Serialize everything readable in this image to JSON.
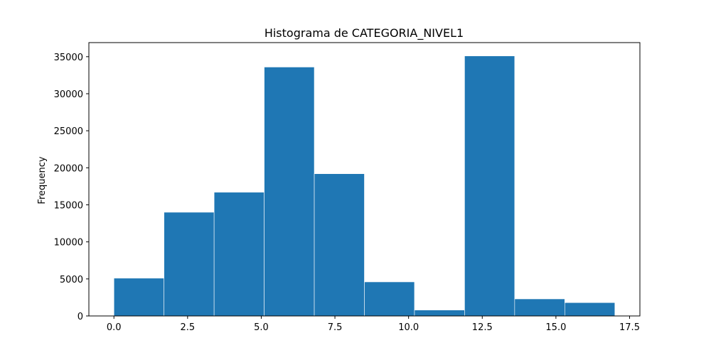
{
  "chart_data": {
    "type": "bar",
    "title": "Histograma de CATEGORIA_NIVEL1",
    "xlabel": "",
    "ylabel": "Frequency",
    "xlim": [
      -0.85,
      17.85
    ],
    "ylim": [
      0,
      36900
    ],
    "grid": false,
    "legend": "none",
    "bar_color": "#1f77b4",
    "bin_edges": [
      0,
      1.7,
      3.4,
      5.1,
      6.8,
      8.5,
      10.2,
      11.9,
      13.6,
      15.3,
      17.0
    ],
    "values": [
      5100,
      14000,
      16700,
      33600,
      19200,
      4600,
      800,
      35100,
      2300,
      1800
    ],
    "x_ticks": [
      0,
      2.5,
      5,
      7.5,
      10,
      12.5,
      15,
      17.5
    ],
    "x_tick_labels": [
      "0.0",
      "2.5",
      "5.0",
      "7.5",
      "10.0",
      "12.5",
      "15.0",
      "17.5"
    ],
    "y_ticks": [
      0,
      5000,
      10000,
      15000,
      20000,
      25000,
      30000,
      35000
    ],
    "y_tick_labels": [
      "0",
      "5000",
      "10000",
      "15000",
      "20000",
      "25000",
      "30000",
      "35000"
    ]
  }
}
